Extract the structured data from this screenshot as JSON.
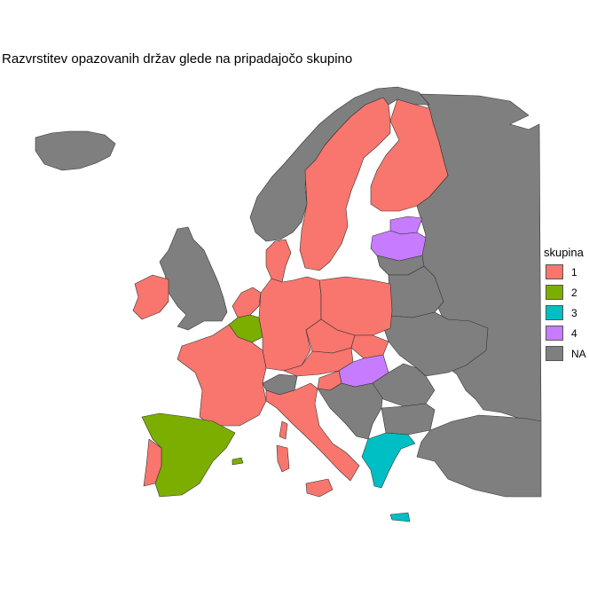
{
  "title": "Razvrstitev opazovanih držav glede na pripadajočo skupino",
  "legend": {
    "title": "skupina",
    "items": [
      {
        "label": "1",
        "color": "#F8766D"
      },
      {
        "label": "2",
        "color": "#7CAE00"
      },
      {
        "label": "3",
        "color": "#00BFC4"
      },
      {
        "label": "4",
        "color": "#C77CFF"
      },
      {
        "label": "NA",
        "color": "#7F7F7F"
      }
    ]
  },
  "regions": [
    {
      "name": "Iceland",
      "group": "NA"
    },
    {
      "name": "Norway",
      "group": "NA"
    },
    {
      "name": "Sweden",
      "group": "1"
    },
    {
      "name": "Finland",
      "group": "1"
    },
    {
      "name": "Russia",
      "group": "NA"
    },
    {
      "name": "Estonia",
      "group": "4"
    },
    {
      "name": "Latvia",
      "group": "4"
    },
    {
      "name": "Lithuania",
      "group": "NA"
    },
    {
      "name": "Belarus",
      "group": "NA"
    },
    {
      "name": "Ukraine",
      "group": "NA"
    },
    {
      "name": "Ireland",
      "group": "1"
    },
    {
      "name": "United Kingdom",
      "group": "NA"
    },
    {
      "name": "Denmark",
      "group": "1"
    },
    {
      "name": "Netherlands",
      "group": "1"
    },
    {
      "name": "Belgium",
      "group": "2"
    },
    {
      "name": "Luxembourg",
      "group": "2"
    },
    {
      "name": "Germany",
      "group": "1"
    },
    {
      "name": "Poland",
      "group": "1"
    },
    {
      "name": "Czechia",
      "group": "1"
    },
    {
      "name": "Slovakia",
      "group": "1"
    },
    {
      "name": "Austria",
      "group": "1"
    },
    {
      "name": "Hungary",
      "group": "4"
    },
    {
      "name": "France",
      "group": "1"
    },
    {
      "name": "Switzerland",
      "group": "NA"
    },
    {
      "name": "Italy",
      "group": "1"
    },
    {
      "name": "Slovenia",
      "group": "1"
    },
    {
      "name": "Balkans",
      "group": "NA"
    },
    {
      "name": "Romania",
      "group": "NA"
    },
    {
      "name": "Bulgaria",
      "group": "NA"
    },
    {
      "name": "Turkey",
      "group": "NA"
    },
    {
      "name": "Greece",
      "group": "3"
    },
    {
      "name": "Spain",
      "group": "2"
    },
    {
      "name": "Portugal",
      "group": "1"
    },
    {
      "name": "Corsica",
      "group": "1"
    },
    {
      "name": "Sardinia",
      "group": "1"
    },
    {
      "name": "Sicily",
      "group": "1"
    },
    {
      "name": "Crete",
      "group": "3"
    },
    {
      "name": "Mallorca",
      "group": "2"
    }
  ]
}
